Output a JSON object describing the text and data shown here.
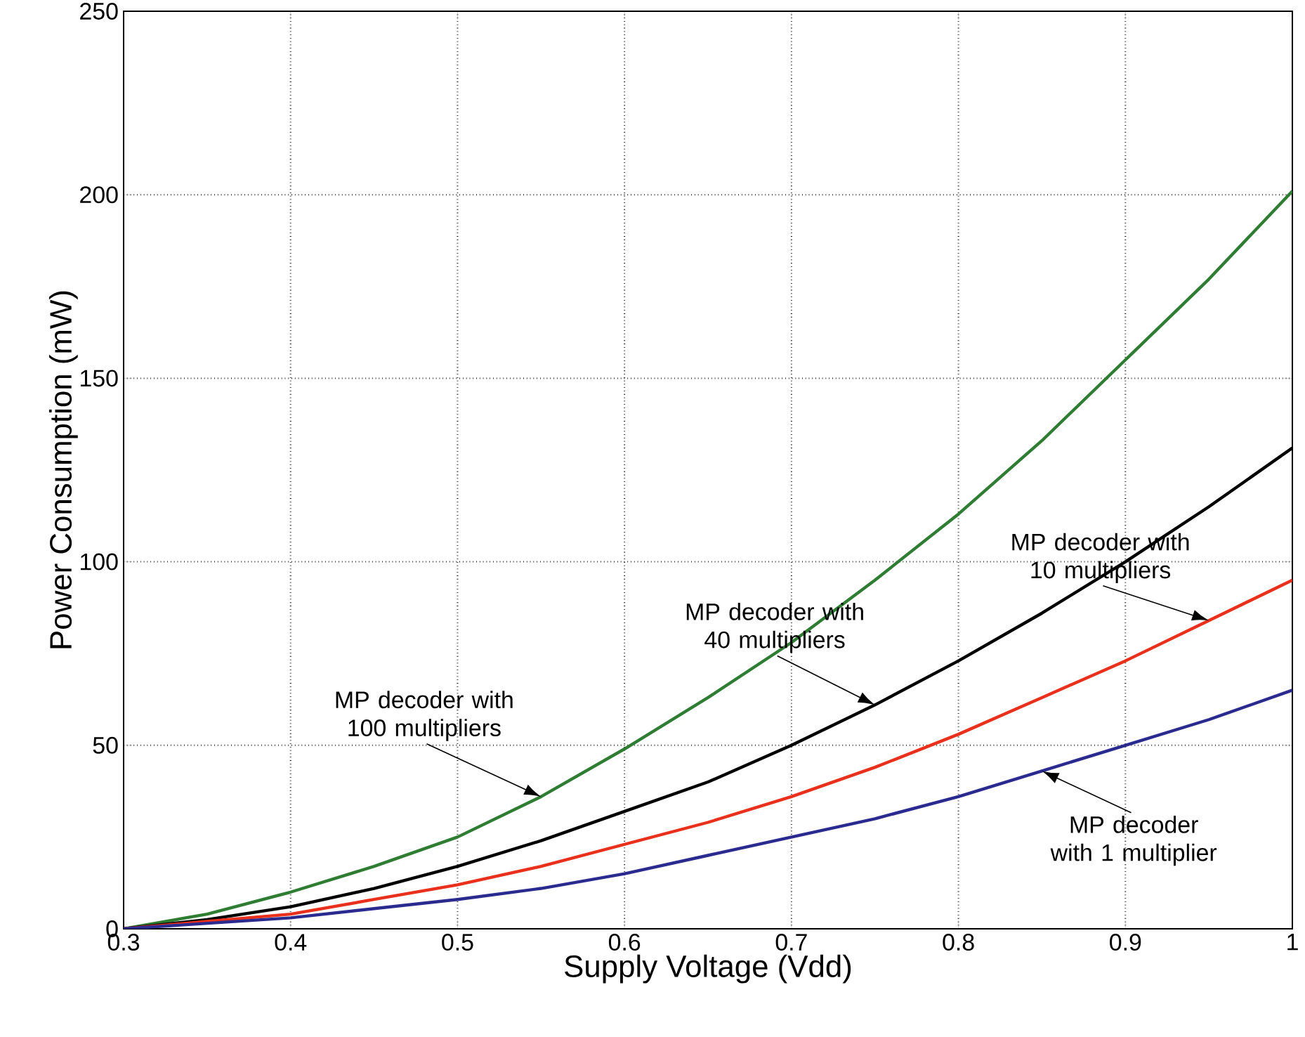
{
  "chart_data": {
    "type": "line",
    "xlabel": "Supply Voltage (Vdd)",
    "ylabel": "Power Consumption (mW)",
    "x": [
      0.3,
      0.35,
      0.4,
      0.45,
      0.5,
      0.55,
      0.6,
      0.65,
      0.7,
      0.75,
      0.8,
      0.85,
      0.9,
      0.95,
      1.0
    ],
    "series": [
      {
        "color": "#2e7d32",
        "values": [
          0,
          4,
          10,
          17,
          25,
          36,
          49,
          63,
          78,
          95,
          113,
          133,
          155,
          177,
          201
        ]
      },
      {
        "color": "#000000",
        "values": [
          0,
          2.5,
          6,
          11,
          17,
          24,
          32,
          40,
          50,
          61,
          73,
          86,
          100,
          115,
          131
        ]
      },
      {
        "color": "#e8301c",
        "values": [
          0,
          2,
          4,
          8,
          12,
          17,
          23,
          29,
          36,
          44,
          53,
          63,
          73,
          84,
          95
        ]
      },
      {
        "color": "#2b2b8f",
        "values": [
          0,
          1.5,
          3,
          5.5,
          8,
          11,
          15,
          20,
          25,
          30,
          36,
          43,
          50,
          57,
          65
        ]
      }
    ],
    "xlim": [
      0.3,
      1
    ],
    "ylim": [
      0,
      250
    ],
    "xticks": [
      0.3,
      0.4,
      0.5,
      0.6,
      0.7,
      0.8,
      0.9,
      1
    ],
    "yticks": [
      0,
      50,
      100,
      150,
      200,
      250
    ],
    "grid": true,
    "line_style": "solid",
    "annotations": [
      {
        "text": "MP decoder with 100 multipliers",
        "x": 0.55,
        "y": 36
      },
      {
        "text": "MP decoder with 40 multipliers",
        "x": 0.75,
        "y": 61
      },
      {
        "text": "MP decoder with 10 multipliers",
        "x": 0.95,
        "y": 84
      },
      {
        "text": "MP decoder with 1 multiplier",
        "x": 0.85,
        "y": 43
      }
    ]
  }
}
